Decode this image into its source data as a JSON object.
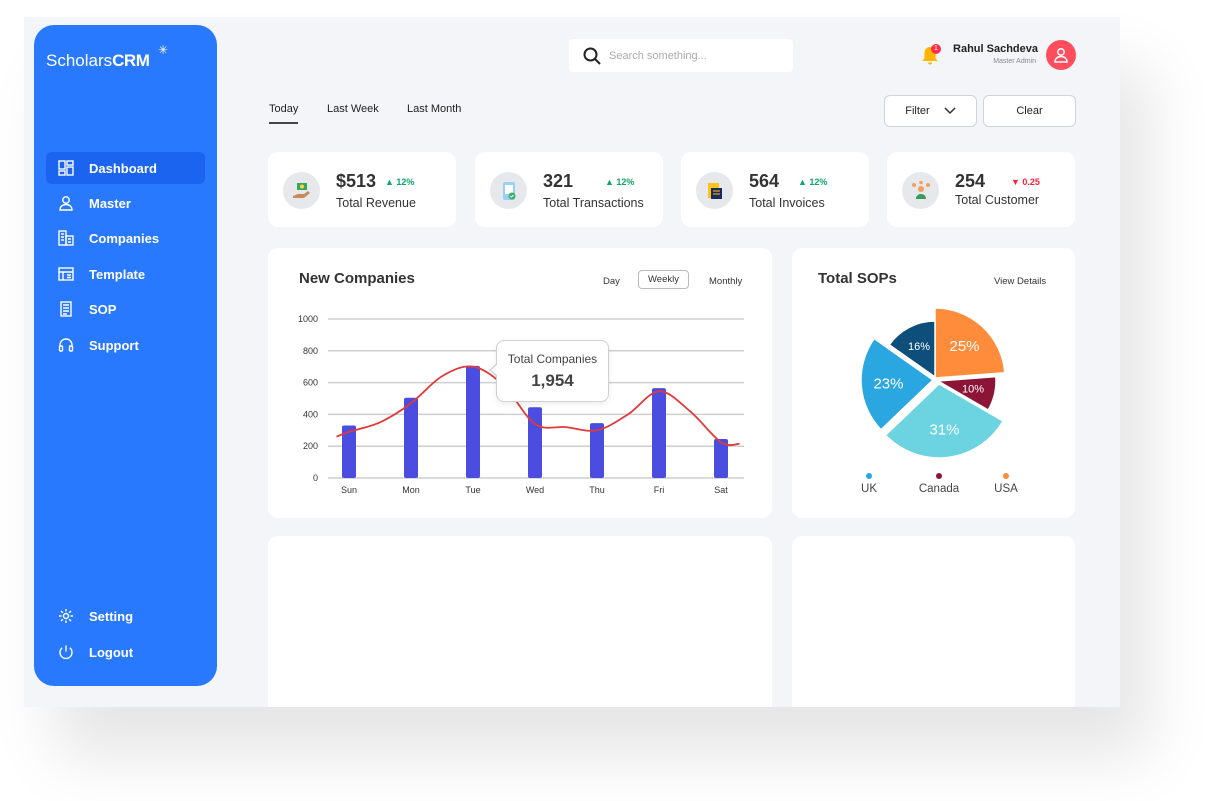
{
  "app": {
    "logo_regular": "Scholars",
    "logo_bold": "CRM",
    "accent_color": "#2979ff"
  },
  "sidebar": {
    "items": [
      {
        "label": "Dashboard",
        "icon": "dashboard-icon",
        "active": true
      },
      {
        "label": "Master",
        "icon": "user-icon"
      },
      {
        "label": "Companies",
        "icon": "building-icon"
      },
      {
        "label": "Template",
        "icon": "template-icon"
      },
      {
        "label": "SOP",
        "icon": "document-icon"
      },
      {
        "label": "Support",
        "icon": "headset-icon"
      }
    ],
    "bottom": [
      {
        "label": "Setting",
        "icon": "gear-icon"
      },
      {
        "label": "Logout",
        "icon": "power-icon"
      }
    ]
  },
  "header": {
    "search_placeholder": "Search something...",
    "notification_count": "1",
    "user_name": "Rahul Sachdeva",
    "user_role": "Master Admin"
  },
  "tabs": [
    "Today",
    "Last Week",
    "Last Month"
  ],
  "toolbar": {
    "filter_label": "Filter",
    "clear_label": "Clear"
  },
  "stats": [
    {
      "value": "$513",
      "change": "12%",
      "direction": "up",
      "label": "Total Revenue",
      "icon": "money-hand-icon"
    },
    {
      "value": "321",
      "change": "12%",
      "direction": "up",
      "label": "Total Transactions",
      "icon": "receipt-phone-icon"
    },
    {
      "value": "564",
      "change": "12%",
      "direction": "up",
      "label": "Total Invoices",
      "icon": "invoice-icon"
    },
    {
      "value": "254",
      "change": "0.25",
      "direction": "down",
      "label": "Total Customer",
      "icon": "customers-icon"
    }
  ],
  "new_companies": {
    "title": "New Companies",
    "periods": [
      "Day",
      "Weekly",
      "Monthly"
    ],
    "active_period": "Weekly",
    "tooltip_label": "Total Companies",
    "tooltip_value": "1,954"
  },
  "total_sops": {
    "title": "Total SOPs",
    "view_details": "View Details"
  },
  "chart_data": [
    {
      "type": "bar",
      "title": "New Companies",
      "categories": [
        "Sun",
        "Mon",
        "Tue",
        "Wed",
        "Thu",
        "Fri",
        "Sat"
      ],
      "ylim": [
        0,
        1000
      ],
      "yticks": [
        0,
        200,
        400,
        600,
        800,
        1000
      ],
      "grid": true,
      "series": [
        {
          "type": "bar",
          "values": [
            330,
            505,
            705,
            445,
            345,
            565,
            245
          ],
          "color": "#4a4de0"
        },
        {
          "type": "line",
          "x": [
            -0.2,
            0,
            0.5,
            1,
            1.5,
            2,
            2.5,
            3,
            3.5,
            4,
            4.5,
            5,
            5.5,
            6,
            6.3
          ],
          "values": [
            260,
            290,
            350,
            470,
            640,
            700,
            580,
            340,
            320,
            300,
            400,
            545,
            420,
            225,
            215
          ],
          "color": "#e03a3a"
        }
      ]
    },
    {
      "type": "pie",
      "title": "Total SOPs",
      "slices": [
        {
          "label": "25%",
          "value": 25,
          "color": "#ff8c3a"
        },
        {
          "label": "10%",
          "value": 10,
          "color": "#8b1437"
        },
        {
          "label": "31%",
          "value": 31,
          "color": "#6cd3e0"
        },
        {
          "label": "23%",
          "value": 23,
          "color": "#2aa6e0"
        },
        {
          "label": "16%",
          "value": 16,
          "color": "#0d4f7a"
        }
      ],
      "legend": [
        {
          "label": "UK",
          "color": "#2aa6e0"
        },
        {
          "label": "Canada",
          "color": "#8b1437"
        },
        {
          "label": "USA",
          "color": "#ff8c3a"
        }
      ]
    }
  ]
}
